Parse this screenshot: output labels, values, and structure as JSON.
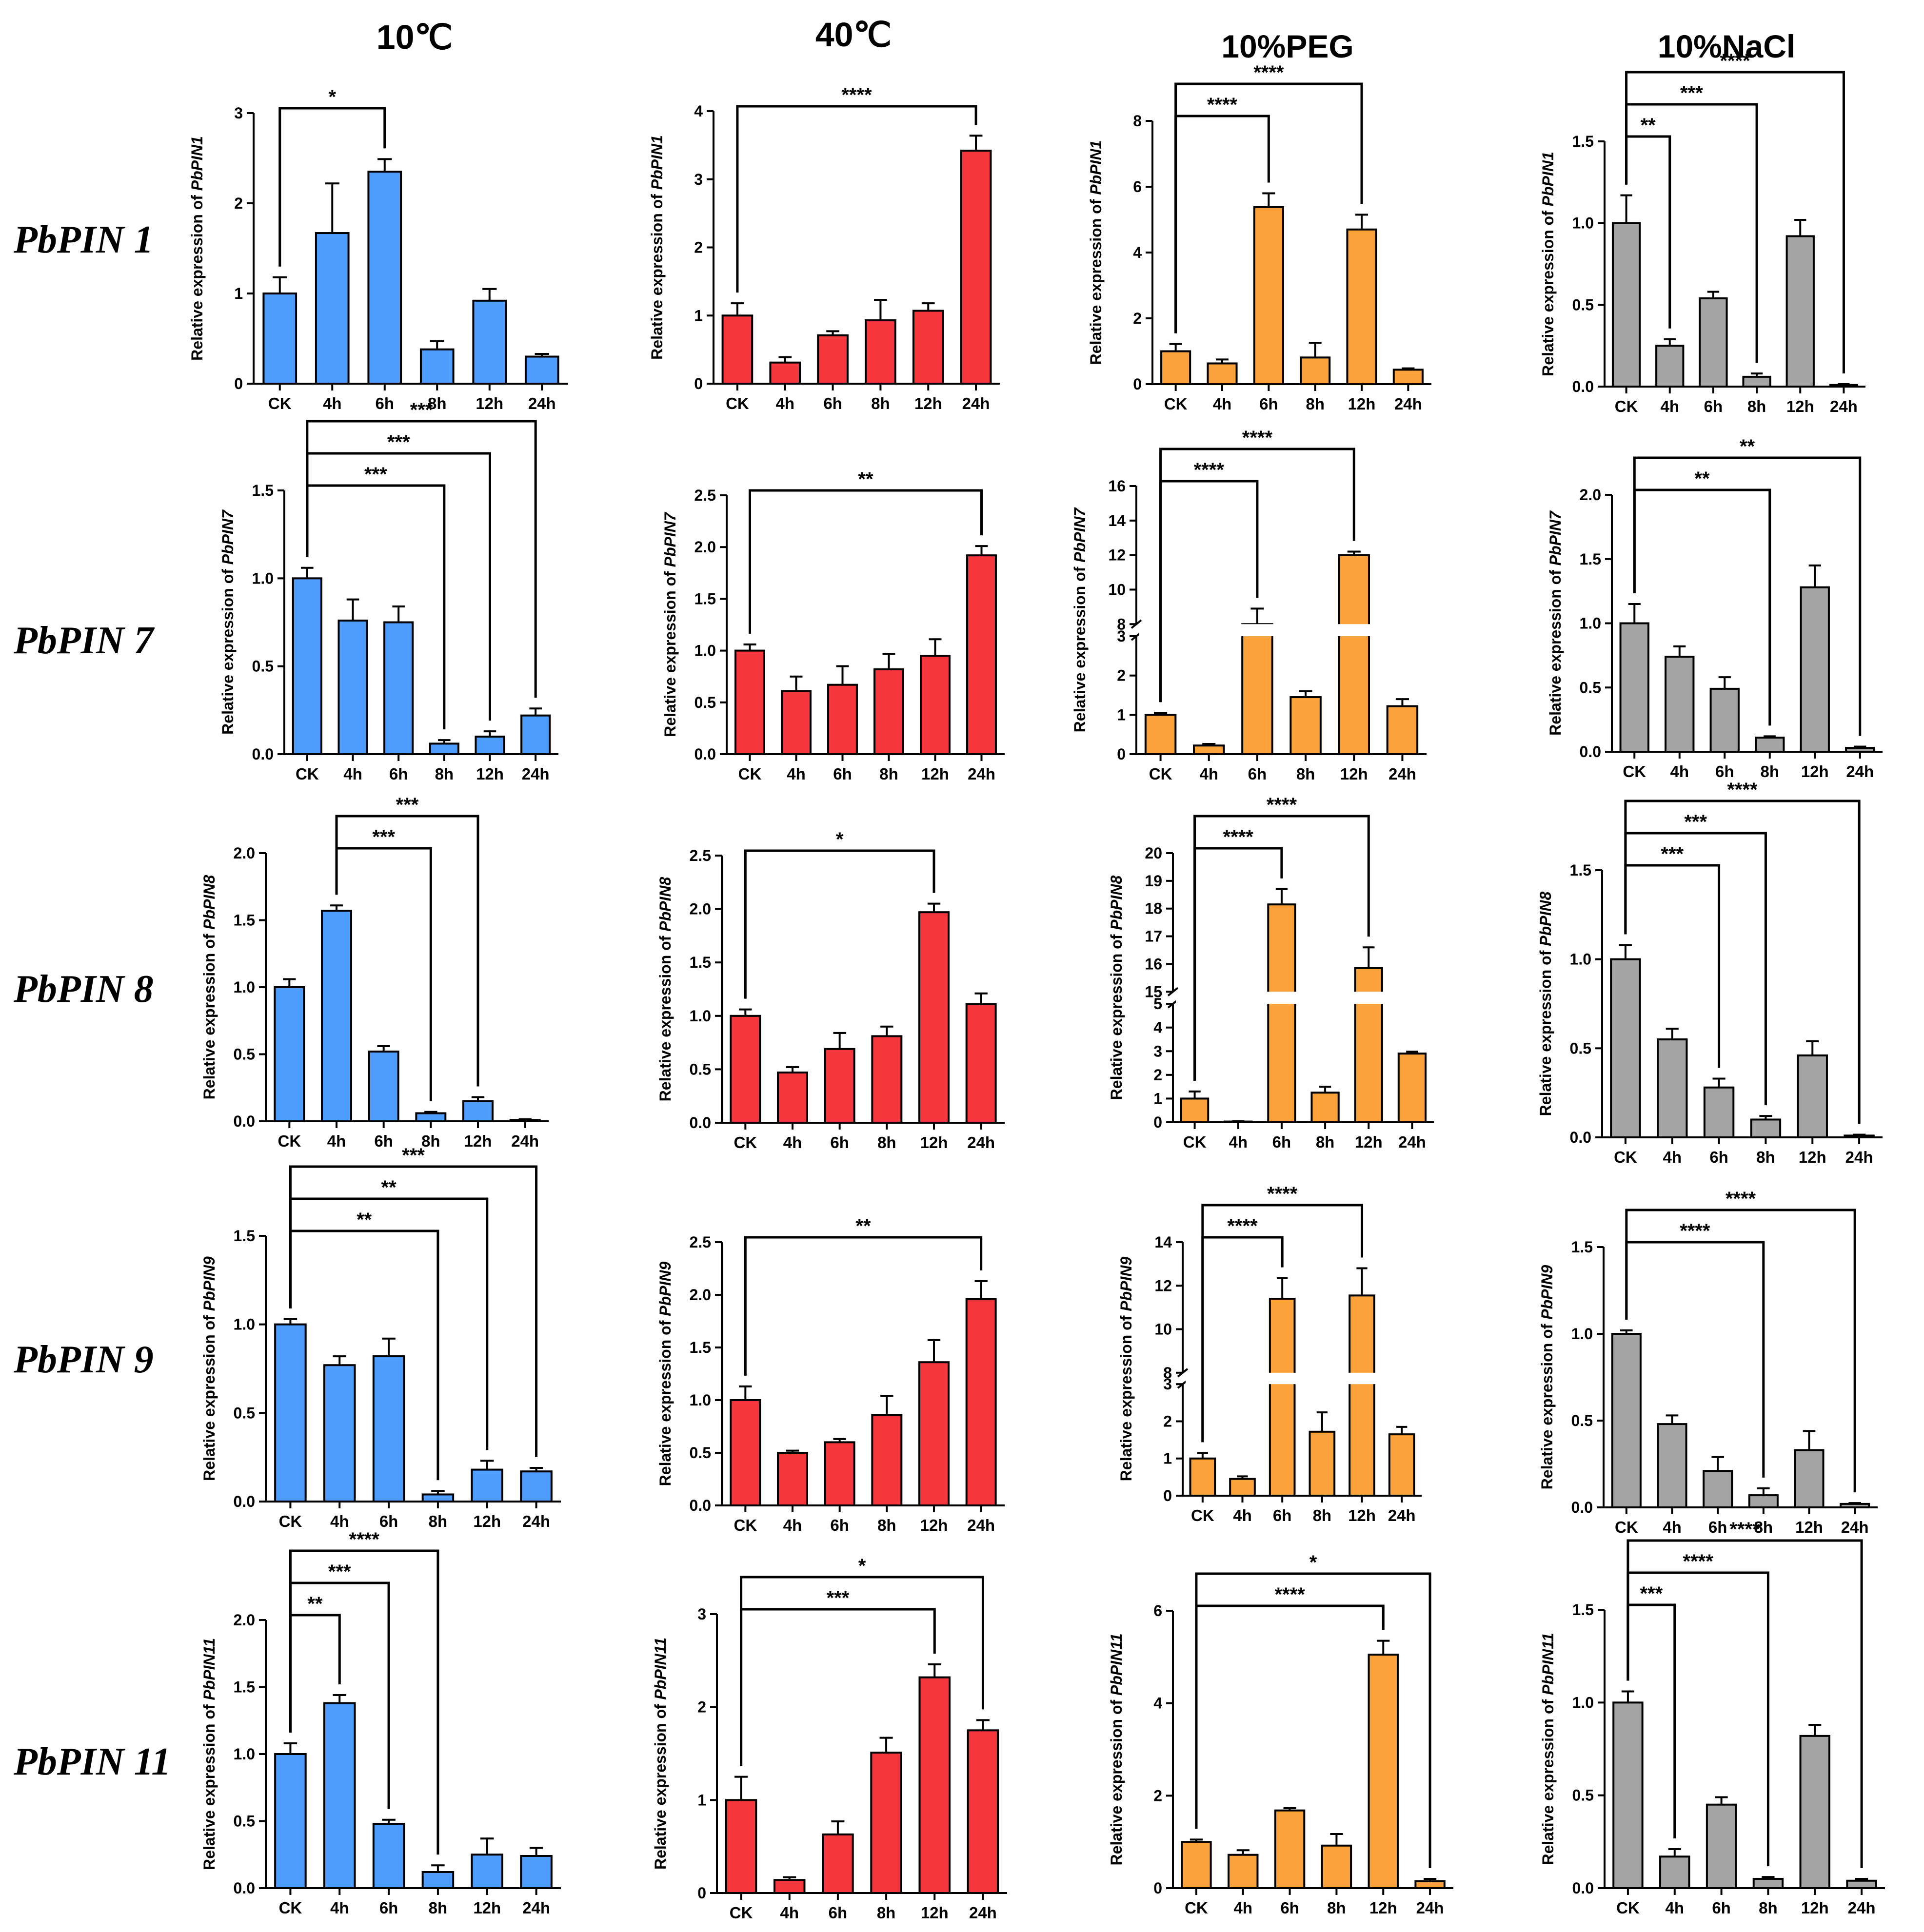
{
  "column_titles": [
    "10℃",
    "40℃",
    "10%PEG",
    "10%NaCl"
  ],
  "row_labels": [
    "PbPIN 1",
    "PbPIN 7",
    "PbPIN 8",
    "PbPIN 9",
    "PbPIN 11"
  ],
  "colors": {
    "10℃": "#4f9dff",
    "40℃": "#f5373d",
    "10%PEG": "#fba33a",
    "10%NaCl": "#a4a4a4"
  },
  "chart_data": [
    {
      "type": "bar",
      "gene": "PbPIN1",
      "treatment": "10℃",
      "ylabel_prefix": "Relative expression of ",
      "ylabel_gene": "PbPIN1",
      "categories": [
        "CK",
        "4h",
        "6h",
        "8h",
        "12h",
        "24h"
      ],
      "values": [
        1.0,
        1.67,
        2.35,
        0.38,
        0.92,
        0.3
      ],
      "errors": [
        0.18,
        0.55,
        0.14,
        0.09,
        0.13,
        0.03
      ],
      "ylim": [
        0,
        3
      ],
      "yticks": [
        0,
        1,
        2,
        3
      ],
      "ytick_labels": [
        "0",
        "1",
        "2",
        "3"
      ],
      "significance": [
        {
          "from": 0,
          "to": 2,
          "label": "*"
        }
      ]
    },
    {
      "type": "bar",
      "gene": "PbPIN1",
      "treatment": "40℃",
      "ylabel_prefix": "Relative expression of ",
      "ylabel_gene": "PbPIN1",
      "categories": [
        "CK",
        "4h",
        "6h",
        "8h",
        "12h",
        "24h"
      ],
      "values": [
        1.0,
        0.31,
        0.71,
        0.93,
        1.07,
        3.42
      ],
      "errors": [
        0.18,
        0.08,
        0.06,
        0.3,
        0.11,
        0.22
      ],
      "ylim": [
        0,
        4
      ],
      "yticks": [
        0,
        1,
        2,
        3,
        4
      ],
      "ytick_labels": [
        "0",
        "1",
        "2",
        "3",
        "4"
      ],
      "significance": [
        {
          "from": 0,
          "to": 5,
          "label": "****"
        }
      ]
    },
    {
      "type": "bar",
      "gene": "PbPIN1",
      "treatment": "10%PEG",
      "ylabel_prefix": "Relative expression of ",
      "ylabel_gene": "PbPIN1",
      "categories": [
        "CK",
        "4h",
        "6h",
        "8h",
        "12h",
        "24h"
      ],
      "values": [
        1.0,
        0.63,
        5.38,
        0.81,
        4.7,
        0.44
      ],
      "errors": [
        0.22,
        0.12,
        0.42,
        0.45,
        0.45,
        0.04
      ],
      "ylim": [
        0,
        8
      ],
      "yticks": [
        0,
        2,
        4,
        6,
        8
      ],
      "ytick_labels": [
        "0",
        "2",
        "4",
        "6",
        "8"
      ],
      "significance": [
        {
          "from": 0,
          "to": 2,
          "label": "****"
        },
        {
          "from": 0,
          "to": 4,
          "label": "****"
        }
      ]
    },
    {
      "type": "bar",
      "gene": "PbPIN1",
      "treatment": "10%NaCl",
      "ylabel_prefix": "Relative expression of ",
      "ylabel_gene": "PbPIN1",
      "categories": [
        "CK",
        "4h",
        "6h",
        "8h",
        "12h",
        "24h"
      ],
      "values": [
        1.0,
        0.25,
        0.54,
        0.06,
        0.92,
        0.01
      ],
      "errors": [
        0.17,
        0.04,
        0.04,
        0.02,
        0.1,
        0.005
      ],
      "ylim": [
        0,
        1.5
      ],
      "yticks": [
        0,
        0.5,
        1.0,
        1.5
      ],
      "ytick_labels": [
        "0.0",
        "0.5",
        "1.0",
        "1.5"
      ],
      "significance": [
        {
          "from": 0,
          "to": 1,
          "label": "**"
        },
        {
          "from": 0,
          "to": 3,
          "label": "***"
        },
        {
          "from": 0,
          "to": 5,
          "label": "****"
        }
      ]
    },
    {
      "type": "bar",
      "gene": "PbPIN7",
      "treatment": "10℃",
      "ylabel_prefix": "Relative expression of ",
      "ylabel_gene": "PbPIN7",
      "categories": [
        "CK",
        "4h",
        "6h",
        "8h",
        "12h",
        "24h"
      ],
      "values": [
        1.0,
        0.76,
        0.75,
        0.06,
        0.1,
        0.22
      ],
      "errors": [
        0.06,
        0.12,
        0.09,
        0.02,
        0.03,
        0.04
      ],
      "ylim": [
        0,
        1.5
      ],
      "yticks": [
        0,
        0.5,
        1.0,
        1.5
      ],
      "ytick_labels": [
        "0.0",
        "0.5",
        "1.0",
        "1.5"
      ],
      "significance": [
        {
          "from": 0,
          "to": 3,
          "label": "***"
        },
        {
          "from": 0,
          "to": 4,
          "label": "***"
        },
        {
          "from": 0,
          "to": 5,
          "label": "***"
        }
      ]
    },
    {
      "type": "bar",
      "gene": "PbPIN7",
      "treatment": "40℃",
      "ylabel_prefix": "Relative expression of ",
      "ylabel_gene": "PbPIN7",
      "categories": [
        "CK",
        "4h",
        "6h",
        "8h",
        "12h",
        "24h"
      ],
      "values": [
        1.0,
        0.61,
        0.67,
        0.82,
        0.95,
        1.92
      ],
      "errors": [
        0.06,
        0.14,
        0.18,
        0.15,
        0.16,
        0.09
      ],
      "ylim": [
        0,
        2.5
      ],
      "yticks": [
        0,
        0.5,
        1.0,
        1.5,
        2.0,
        2.5
      ],
      "ytick_labels": [
        "0.0",
        "0.5",
        "1.0",
        "1.5",
        "2.0",
        "2.5"
      ],
      "significance": [
        {
          "from": 0,
          "to": 5,
          "label": "**"
        }
      ]
    },
    {
      "type": "bar",
      "gene": "PbPIN7",
      "treatment": "10%PEG",
      "ylabel_prefix": "Relative expression of ",
      "ylabel_gene": "PbPIN7",
      "categories": [
        "CK",
        "4h",
        "6h",
        "8h",
        "12h",
        "24h"
      ],
      "values": [
        1.0,
        0.22,
        8.0,
        1.45,
        12.0,
        1.22
      ],
      "errors": [
        0.05,
        0.04,
        0.9,
        0.15,
        0.2,
        0.18
      ],
      "axis_break": {
        "low": [
          0,
          3
        ],
        "high": [
          8,
          16
        ]
      },
      "yticks_low": [
        0,
        1,
        2,
        3
      ],
      "yticks_high": [
        8,
        10,
        12,
        14,
        16
      ],
      "ytick_labels": [
        "0",
        "1",
        "2",
        "3",
        "8",
        "10",
        "12",
        "14",
        "16"
      ],
      "significance": [
        {
          "from": 0,
          "to": 2,
          "label": "****"
        },
        {
          "from": 0,
          "to": 4,
          "label": "****"
        }
      ]
    },
    {
      "type": "bar",
      "gene": "PbPIN7",
      "treatment": "10%NaCl",
      "ylabel_prefix": "Relative expression of ",
      "ylabel_gene": "PbPIN7",
      "categories": [
        "CK",
        "4h",
        "6h",
        "8h",
        "12h",
        "24h"
      ],
      "values": [
        1.0,
        0.74,
        0.49,
        0.11,
        1.28,
        0.03
      ],
      "errors": [
        0.15,
        0.08,
        0.09,
        0.01,
        0.17,
        0.01
      ],
      "ylim": [
        0,
        2.0
      ],
      "yticks": [
        0,
        0.5,
        1.0,
        1.5,
        2.0
      ],
      "ytick_labels": [
        "0.0",
        "0.5",
        "1.0",
        "1.5",
        "2.0"
      ],
      "significance": [
        {
          "from": 0,
          "to": 3,
          "label": "**"
        },
        {
          "from": 0,
          "to": 5,
          "label": "**"
        }
      ]
    },
    {
      "type": "bar",
      "gene": "PbPIN8",
      "treatment": "10℃",
      "ylabel_prefix": "Relative expression of ",
      "ylabel_gene": "PbPIN8",
      "categories": [
        "CK",
        "4h",
        "6h",
        "8h",
        "12h",
        "24h"
      ],
      "values": [
        1.0,
        1.57,
        0.52,
        0.06,
        0.15,
        0.01
      ],
      "errors": [
        0.06,
        0.04,
        0.04,
        0.01,
        0.03,
        0.005
      ],
      "ylim": [
        0,
        2.0
      ],
      "yticks": [
        0,
        0.5,
        1.0,
        1.5,
        2.0
      ],
      "ytick_labels": [
        "0.0",
        "0.5",
        "1.0",
        "1.5",
        "2.0"
      ],
      "significance": [
        {
          "from": 1,
          "to": 3,
          "label": "***"
        },
        {
          "from": 1,
          "to": 4,
          "label": "***"
        }
      ]
    },
    {
      "type": "bar",
      "gene": "PbPIN8",
      "treatment": "40℃",
      "ylabel_prefix": "Relative expression of ",
      "ylabel_gene": "PbPIN8",
      "categories": [
        "CK",
        "4h",
        "6h",
        "8h",
        "12h",
        "24h"
      ],
      "values": [
        1.0,
        0.47,
        0.69,
        0.81,
        1.97,
        1.11
      ],
      "errors": [
        0.06,
        0.05,
        0.15,
        0.09,
        0.08,
        0.1
      ],
      "ylim": [
        0,
        2.5
      ],
      "yticks": [
        0,
        0.5,
        1.0,
        1.5,
        2.0,
        2.5
      ],
      "ytick_labels": [
        "0.0",
        "0.5",
        "1.0",
        "1.5",
        "2.0",
        "2.5"
      ],
      "significance": [
        {
          "from": 0,
          "to": 4,
          "label": "*"
        }
      ]
    },
    {
      "type": "bar",
      "gene": "PbPIN8",
      "treatment": "10%PEG",
      "ylabel_prefix": "Relative expression of ",
      "ylabel_gene": "PbPIN8",
      "categories": [
        "CK",
        "4h",
        "6h",
        "8h",
        "12h",
        "24h"
      ],
      "values": [
        1.0,
        0.03,
        18.15,
        1.25,
        15.85,
        2.9
      ],
      "errors": [
        0.3,
        0.01,
        0.55,
        0.25,
        0.75,
        0.08
      ],
      "axis_break": {
        "low": [
          0,
          5
        ],
        "high": [
          15,
          20
        ]
      },
      "yticks_low": [
        0,
        1,
        2,
        3,
        4,
        5
      ],
      "yticks_high": [
        15,
        16,
        17,
        18,
        19,
        20
      ],
      "ytick_labels": [
        "0",
        "1",
        "2",
        "3",
        "4",
        "5",
        "15",
        "16",
        "17",
        "18",
        "19",
        "20"
      ],
      "significance": [
        {
          "from": 0,
          "to": 2,
          "label": "****"
        },
        {
          "from": 0,
          "to": 4,
          "label": "****"
        }
      ]
    },
    {
      "type": "bar",
      "gene": "PbPIN8",
      "treatment": "10%NaCl",
      "ylabel_prefix": "Relative expression of ",
      "ylabel_gene": "PbPIN8",
      "categories": [
        "CK",
        "4h",
        "6h",
        "8h",
        "12h",
        "24h"
      ],
      "values": [
        1.0,
        0.55,
        0.28,
        0.1,
        0.46,
        0.01
      ],
      "errors": [
        0.08,
        0.06,
        0.05,
        0.02,
        0.08,
        0.005
      ],
      "ylim": [
        0,
        1.5
      ],
      "yticks": [
        0,
        0.5,
        1.0,
        1.5
      ],
      "ytick_labels": [
        "0.0",
        "0.5",
        "1.0",
        "1.5"
      ],
      "significance": [
        {
          "from": 0,
          "to": 2,
          "label": "***"
        },
        {
          "from": 0,
          "to": 3,
          "label": "***"
        },
        {
          "from": 0,
          "to": 5,
          "label": "****"
        }
      ]
    },
    {
      "type": "bar",
      "gene": "PbPIN9",
      "treatment": "10℃",
      "ylabel_prefix": "Relative expression of ",
      "ylabel_gene": "PbPIN9",
      "categories": [
        "CK",
        "4h",
        "6h",
        "8h",
        "12h",
        "24h"
      ],
      "values": [
        1.0,
        0.77,
        0.82,
        0.04,
        0.18,
        0.17
      ],
      "errors": [
        0.03,
        0.05,
        0.1,
        0.02,
        0.05,
        0.02
      ],
      "ylim": [
        0,
        1.5
      ],
      "yticks": [
        0,
        0.5,
        1.0,
        1.5
      ],
      "ytick_labels": [
        "0.0",
        "0.5",
        "1.0",
        "1.5"
      ],
      "significance": [
        {
          "from": 0,
          "to": 3,
          "label": "**"
        },
        {
          "from": 0,
          "to": 4,
          "label": "**"
        },
        {
          "from": 0,
          "to": 5,
          "label": "***"
        }
      ]
    },
    {
      "type": "bar",
      "gene": "PbPIN9",
      "treatment": "40℃",
      "ylabel_prefix": "Relative expression of ",
      "ylabel_gene": "PbPIN9",
      "categories": [
        "CK",
        "4h",
        "6h",
        "8h",
        "12h",
        "24h"
      ],
      "values": [
        1.0,
        0.5,
        0.6,
        0.86,
        1.36,
        1.96
      ],
      "errors": [
        0.13,
        0.02,
        0.03,
        0.18,
        0.21,
        0.17
      ],
      "ylim": [
        0,
        2.5
      ],
      "yticks": [
        0,
        0.5,
        1.0,
        1.5,
        2.0,
        2.5
      ],
      "ytick_labels": [
        "0.0",
        "0.5",
        "1.0",
        "1.5",
        "2.0",
        "2.5"
      ],
      "significance": [
        {
          "from": 0,
          "to": 5,
          "label": "**"
        }
      ]
    },
    {
      "type": "bar",
      "gene": "PbPIN9",
      "treatment": "10%PEG",
      "ylabel_prefix": "Relative expression of ",
      "ylabel_gene": "PbPIN9",
      "categories": [
        "CK",
        "4h",
        "6h",
        "8h",
        "12h",
        "24h"
      ],
      "values": [
        1.0,
        0.45,
        11.4,
        1.72,
        11.55,
        1.65
      ],
      "errors": [
        0.15,
        0.07,
        0.95,
        0.52,
        1.25,
        0.2
      ],
      "axis_break": {
        "low": [
          0,
          3
        ],
        "high": [
          8,
          14
        ]
      },
      "yticks_low": [
        0,
        1,
        2,
        3
      ],
      "yticks_high": [
        8,
        10,
        12,
        14
      ],
      "ytick_labels": [
        "0",
        "1",
        "2",
        "3",
        "8",
        "10",
        "12",
        "14"
      ],
      "significance": [
        {
          "from": 0,
          "to": 2,
          "label": "****"
        },
        {
          "from": 0,
          "to": 4,
          "label": "****"
        }
      ]
    },
    {
      "type": "bar",
      "gene": "PbPIN9",
      "treatment": "10%NaCl",
      "ylabel_prefix": "Relative expression of ",
      "ylabel_gene": "PbPIN9",
      "categories": [
        "CK",
        "4h",
        "6h",
        "8h",
        "12h",
        "24h"
      ],
      "values": [
        1.0,
        0.48,
        0.21,
        0.07,
        0.33,
        0.02
      ],
      "errors": [
        0.02,
        0.05,
        0.08,
        0.04,
        0.11,
        0.005
      ],
      "ylim": [
        0,
        1.5
      ],
      "yticks": [
        0,
        0.5,
        1.0,
        1.5
      ],
      "ytick_labels": [
        "0.0",
        "0.5",
        "1.0",
        "1.5"
      ],
      "significance": [
        {
          "from": 0,
          "to": 3,
          "label": "****"
        },
        {
          "from": 0,
          "to": 5,
          "label": "****"
        }
      ]
    },
    {
      "type": "bar",
      "gene": "PbPIN11",
      "treatment": "10℃",
      "ylabel_prefix": "Relative expression of ",
      "ylabel_gene": "PbPIN11",
      "categories": [
        "CK",
        "4h",
        "6h",
        "8h",
        "12h",
        "24h"
      ],
      "values": [
        1.0,
        1.38,
        0.48,
        0.12,
        0.25,
        0.24
      ],
      "errors": [
        0.08,
        0.06,
        0.03,
        0.05,
        0.12,
        0.06
      ],
      "ylim": [
        0,
        2.0
      ],
      "yticks": [
        0,
        0.5,
        1.0,
        1.5,
        2.0
      ],
      "ytick_labels": [
        "0.0",
        "0.5",
        "1.0",
        "1.5",
        "2.0"
      ],
      "significance": [
        {
          "from": 0,
          "to": 1,
          "label": "**"
        },
        {
          "from": 0,
          "to": 2,
          "label": "***"
        },
        {
          "from": 0,
          "to": 3,
          "label": "****"
        }
      ]
    },
    {
      "type": "bar",
      "gene": "PbPIN11",
      "treatment": "40℃",
      "ylabel_prefix": "Relative expression of ",
      "ylabel_gene": "PbPIN11",
      "categories": [
        "CK",
        "4h",
        "6h",
        "8h",
        "12h",
        "24h"
      ],
      "values": [
        1.0,
        0.14,
        0.63,
        1.51,
        2.32,
        1.75
      ],
      "errors": [
        0.25,
        0.03,
        0.14,
        0.16,
        0.14,
        0.11
      ],
      "ylim": [
        0,
        3
      ],
      "yticks": [
        0,
        1,
        2,
        3
      ],
      "ytick_labels": [
        "0",
        "1",
        "2",
        "3"
      ],
      "significance": [
        {
          "from": 0,
          "to": 4,
          "label": "***"
        },
        {
          "from": 0,
          "to": 5,
          "label": "*"
        }
      ]
    },
    {
      "type": "bar",
      "gene": "PbPIN11",
      "treatment": "10%PEG",
      "ylabel_prefix": "Relative expression of ",
      "ylabel_gene": "PbPIN11",
      "categories": [
        "CK",
        "4h",
        "6h",
        "8h",
        "12h",
        "24h"
      ],
      "values": [
        1.0,
        0.72,
        1.68,
        0.92,
        5.05,
        0.15
      ],
      "errors": [
        0.05,
        0.1,
        0.05,
        0.25,
        0.3,
        0.05
      ],
      "ylim": [
        0,
        6
      ],
      "yticks": [
        0,
        2,
        4,
        6
      ],
      "ytick_labels": [
        "0",
        "2",
        "4",
        "6"
      ],
      "significance": [
        {
          "from": 0,
          "to": 4,
          "label": "****"
        },
        {
          "from": 0,
          "to": 5,
          "label": "*"
        }
      ]
    },
    {
      "type": "bar",
      "gene": "PbPIN11",
      "treatment": "10%NaCl",
      "ylabel_prefix": "Relative expression of ",
      "ylabel_gene": "PbPIN11",
      "categories": [
        "CK",
        "4h",
        "6h",
        "8h",
        "12h",
        "24h"
      ],
      "values": [
        1.0,
        0.17,
        0.45,
        0.05,
        0.82,
        0.04
      ],
      "errors": [
        0.06,
        0.04,
        0.04,
        0.01,
        0.06,
        0.01
      ],
      "ylim": [
        0,
        1.5
      ],
      "yticks": [
        0,
        0.5,
        1.0,
        1.5
      ],
      "ytick_labels": [
        "0.0",
        "0.5",
        "1.0",
        "1.5"
      ],
      "significance": [
        {
          "from": 0,
          "to": 1,
          "label": "***"
        },
        {
          "from": 0,
          "to": 3,
          "label": "****"
        },
        {
          "from": 0,
          "to": 5,
          "label": "****"
        }
      ]
    }
  ]
}
